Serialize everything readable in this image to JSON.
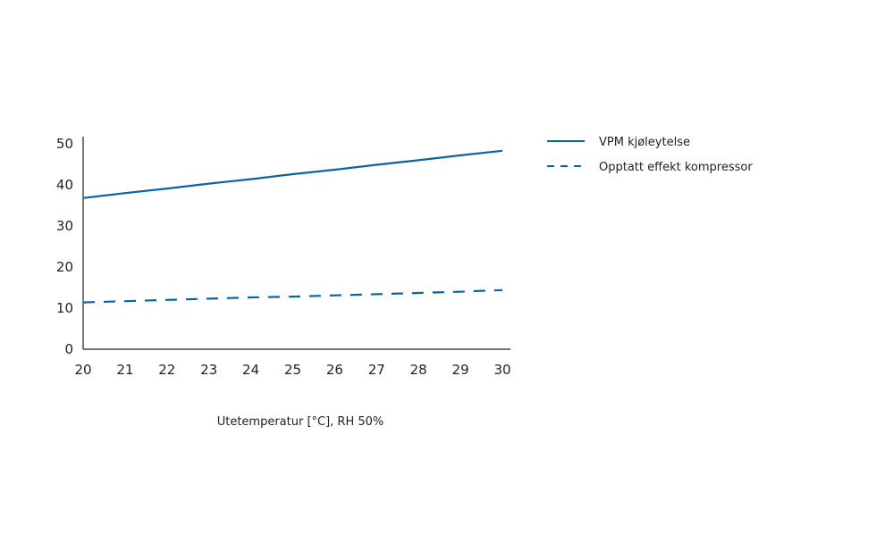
{
  "chart_data": {
    "type": "line",
    "title": "",
    "xlabel": "Utetemperatur [°C], RH 50%",
    "ylabel": "",
    "xlim": [
      20,
      30
    ],
    "ylim": [
      0,
      50
    ],
    "x_ticks": [
      "20",
      "21",
      "22",
      "23",
      "24",
      "25",
      "26",
      "27",
      "28",
      "29",
      "30"
    ],
    "y_ticks": [
      "0",
      "10",
      "20",
      "30",
      "40",
      "50"
    ],
    "grid": false,
    "legend_position": "right",
    "series": [
      {
        "name": "VPM kjøleytelse",
        "style": "solid",
        "color": "#0a64a4",
        "x": [
          20,
          21,
          22,
          23,
          24,
          25,
          26,
          27,
          28,
          29,
          30
        ],
        "values": [
          36.8,
          38.0,
          39.1,
          40.3,
          41.4,
          42.6,
          43.7,
          44.9,
          46.0,
          47.2,
          48.3
        ]
      },
      {
        "name": "Opptatt effekt kompressor",
        "style": "dashed",
        "color": "#0a64a4",
        "x": [
          20,
          21,
          22,
          23,
          24,
          25,
          26,
          27,
          28,
          29,
          30
        ],
        "values": [
          11.4,
          11.7,
          12.0,
          12.3,
          12.6,
          12.8,
          13.1,
          13.4,
          13.7,
          14.0,
          14.4
        ]
      }
    ]
  }
}
